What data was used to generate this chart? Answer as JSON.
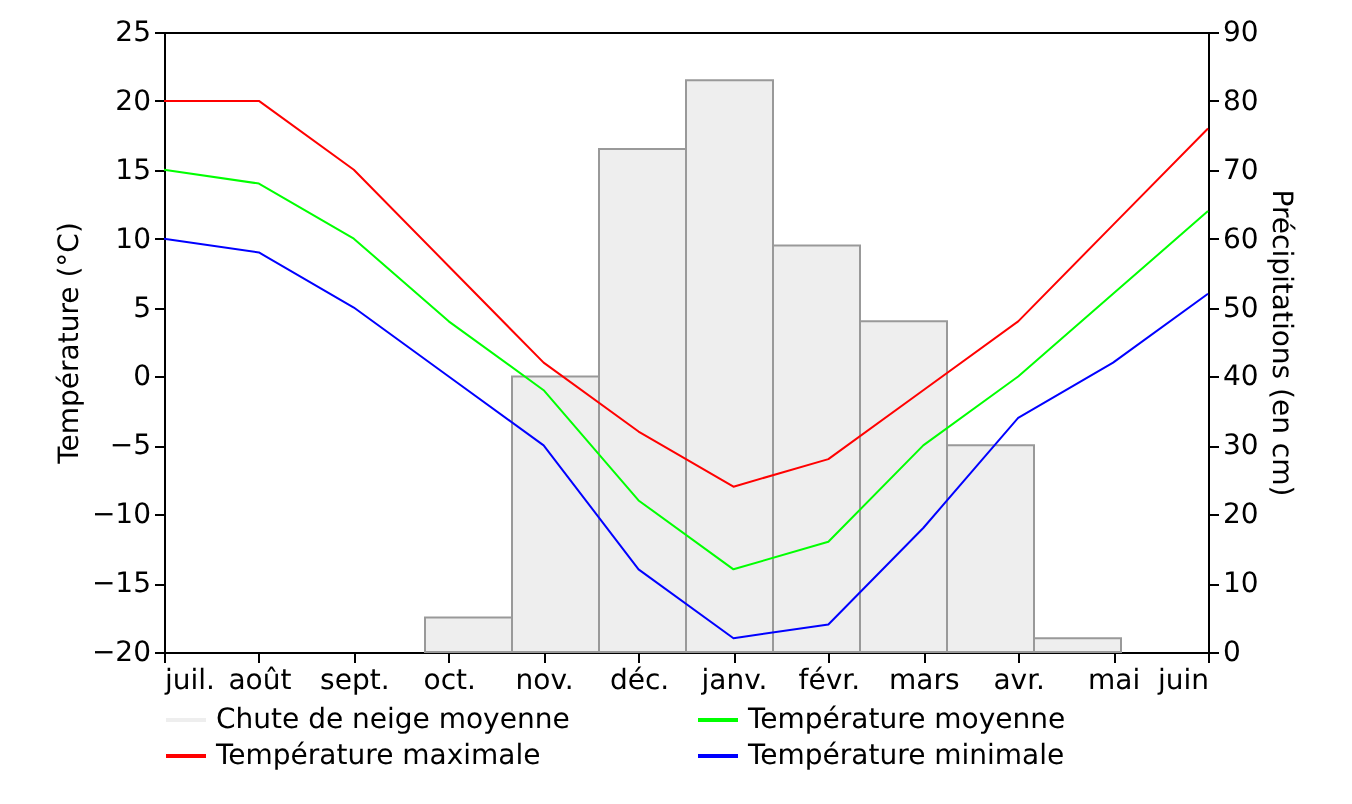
{
  "chart_data": {
    "type": "line",
    "categories": [
      "juil.",
      "août",
      "sept.",
      "oct.",
      "nov.",
      "déc.",
      "janv.",
      "févr.",
      "mars",
      "avr.",
      "mai",
      "juin"
    ],
    "ylabel": "Température (°C)",
    "y2label": "Précipitations (en cm)",
    "ylim": [
      -20,
      25
    ],
    "yticks": [
      -20,
      -15,
      -10,
      -5,
      0,
      5,
      10,
      15,
      20,
      25
    ],
    "y2lim": [
      0,
      90
    ],
    "y2ticks": [
      0,
      10,
      20,
      30,
      40,
      50,
      60,
      70,
      80,
      90
    ],
    "legend": "bottom",
    "grid": false,
    "series": [
      {
        "name": "Chute de neige moyenne",
        "type": "bar",
        "axis": "y2",
        "color": "#eeeeee",
        "values": [
          0,
          0,
          0,
          5,
          40,
          73,
          83,
          59,
          48,
          30,
          2,
          0
        ]
      },
      {
        "name": "Température moyenne",
        "color": "#00ff00",
        "values": [
          15,
          14,
          10,
          4,
          -1,
          -9,
          -14,
          -12,
          -5,
          0,
          6,
          12
        ]
      },
      {
        "name": "Température maximale",
        "color": "#ff0000",
        "values": [
          20,
          20,
          15,
          8,
          1,
          -4,
          -8,
          -6,
          -1,
          4,
          11,
          18
        ]
      },
      {
        "name": "Température minimale",
        "color": "#0000ff",
        "values": [
          10,
          9,
          5,
          0,
          -5,
          -14,
          -19,
          -18,
          -11,
          -3,
          1,
          6
        ]
      }
    ]
  }
}
